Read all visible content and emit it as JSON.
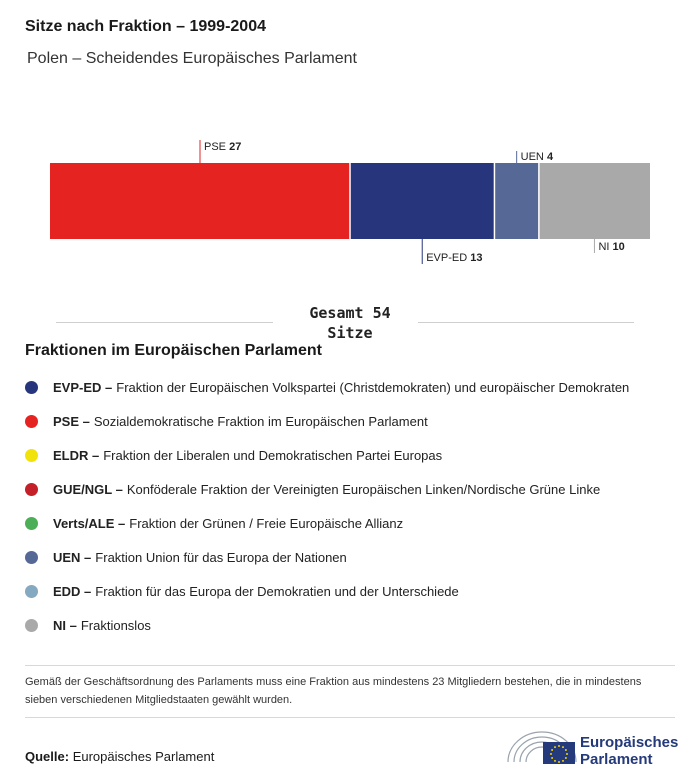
{
  "header": {
    "title": "Sitze nach Fraktion – 1999-2004",
    "subtitle": "Polen – Scheidendes Europäisches Parlament"
  },
  "chart_data": {
    "type": "bar",
    "orientation": "horizontal-stacked",
    "total": 54,
    "segments": [
      {
        "label": "PSE",
        "value": 27,
        "color": "#e52421",
        "label_position": "top"
      },
      {
        "label": "EVP-ED",
        "value": 13,
        "color": "#27357c",
        "label_position": "bottom"
      },
      {
        "label": "UEN",
        "value": 4,
        "color": "#566895",
        "label_position": "top"
      },
      {
        "label": "NI",
        "value": 10,
        "color": "#a9a9a9",
        "label_position": "bottom"
      }
    ]
  },
  "total": {
    "line1": "Gesamt 54",
    "line2": "Sitze"
  },
  "legend": {
    "title": "Fraktionen im Europäischen Parlament",
    "items": [
      {
        "abbr": "EVP-ED –",
        "text": "Fraktion der Europäischen Volkspartei (Christdemokraten) und europäischer Demokraten",
        "color": "#27357c"
      },
      {
        "abbr": "PSE –",
        "text": "Sozialdemokratische Fraktion im Europäischen Parlament",
        "color": "#e52421"
      },
      {
        "abbr": "ELDR –",
        "text": "Fraktion der Liberalen und Demokratischen Partei Europas",
        "color": "#f2e20c"
      },
      {
        "abbr": "GUE/NGL –",
        "text": "Konföderale Fraktion der Vereinigten Europäischen Linken/Nordische Grüne Linke",
        "color": "#c3202a"
      },
      {
        "abbr": "Verts/ALE –",
        "text": "Fraktion der Grünen / Freie Europäische Allianz",
        "color": "#4cae56"
      },
      {
        "abbr": "UEN –",
        "text": "Fraktion Union für das Europa der Nationen",
        "color": "#566895"
      },
      {
        "abbr": "EDD –",
        "text": "Fraktion für das Europa der Demokratien und der Unterschiede",
        "color": "#84a9c0"
      },
      {
        "abbr": "NI –",
        "text": "Fraktionslos",
        "color": "#a9a9a9"
      }
    ]
  },
  "footer": {
    "note": "Gemäß der Geschäftsordnung des Parlaments muss eine Fraktion aus mindestens 23 Mitgliedern bestehen, die in mindestens sieben verschiedenen Mitgliedstaaten gewählt wurden.",
    "source_label": "Quelle:",
    "source_value": "Europäisches Parlament",
    "logo_line1": "Europäisches",
    "logo_line2": "Parlament",
    "logo_color": "#243a7a",
    "logo_icon": "european-parliament-hemicycle-icon"
  }
}
